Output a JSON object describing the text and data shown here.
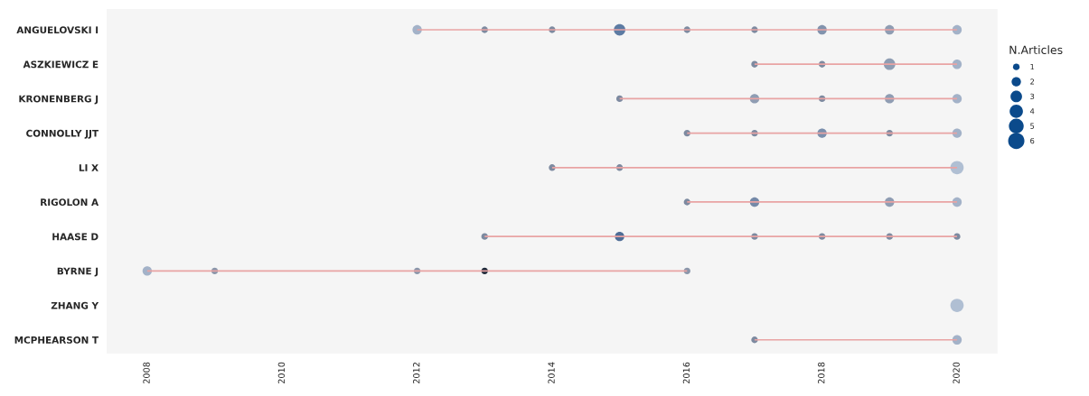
{
  "chart_data": {
    "type": "bubble",
    "orientation": "horizontal",
    "categories": [
      "ANGUELOVSKI I",
      "ASZKIEWICZ E",
      "KRONENBERG J",
      "CONNOLLY JJT",
      "LI X",
      "RIGOLON A",
      "HAASE D",
      "BYRNE J",
      "ZHANG Y",
      "MCPHEARSON T"
    ],
    "series": [
      {
        "type": "bar",
        "color": "#e8a3a3",
        "base": [
          2012,
          2017,
          2015,
          2016,
          2014,
          2016,
          2013,
          2008,
          null,
          2017
        ],
        "values": [
          8,
          3,
          5,
          4,
          6,
          4,
          7,
          8,
          null,
          3
        ]
      },
      {
        "type": "bubble",
        "color": "#0b4a8b",
        "values": [
          null,
          null,
          null,
          null,
          null,
          null,
          null,
          2008,
          null,
          null
        ],
        "sizes": [
          null,
          null,
          null,
          null,
          null,
          null,
          null,
          2,
          null,
          null
        ],
        "colors": [
          null,
          null,
          null,
          null,
          null,
          null,
          null,
          "#a3b2c8",
          null,
          null
        ]
      },
      {
        "type": "bubble",
        "values": [
          null,
          null,
          null,
          null,
          null,
          null,
          null,
          2009,
          null,
          null
        ],
        "sizes": [
          null,
          null,
          null,
          null,
          null,
          null,
          null,
          1,
          null,
          null
        ],
        "colors": [
          null,
          null,
          null,
          null,
          null,
          null,
          null,
          "#8a96aa",
          null,
          null
        ]
      },
      {
        "type": "bubble",
        "values": [
          2012,
          null,
          null,
          null,
          null,
          null,
          null,
          2012,
          null,
          null
        ],
        "sizes": [
          2,
          null,
          null,
          null,
          null,
          null,
          null,
          1,
          null,
          null
        ],
        "colors": [
          "#a3b2c8",
          null,
          null,
          null,
          null,
          null,
          null,
          "#8a96aa",
          null,
          null
        ]
      },
      {
        "type": "bubble",
        "values": [
          2013,
          null,
          null,
          null,
          null,
          null,
          2013,
          2013,
          null,
          null
        ],
        "sizes": [
          1,
          null,
          null,
          null,
          null,
          null,
          1,
          1,
          null,
          null
        ],
        "colors": [
          "#7d8aa0",
          null,
          null,
          null,
          null,
          null,
          "#7d8aa0",
          "#1f2a3a",
          null,
          null
        ]
      },
      {
        "type": "bubble",
        "values": [
          2014,
          null,
          null,
          null,
          2014,
          null,
          null,
          null,
          null,
          null
        ],
        "sizes": [
          1,
          null,
          null,
          null,
          1,
          null,
          null,
          null,
          null,
          null
        ],
        "colors": [
          "#7d8aa0",
          null,
          null,
          null,
          "#7d8aa0",
          null,
          null,
          null,
          null,
          null
        ]
      },
      {
        "type": "bubble",
        "values": [
          2015,
          null,
          2015,
          null,
          2015,
          null,
          2015,
          null,
          null,
          null
        ],
        "sizes": [
          3,
          null,
          1,
          null,
          1,
          null,
          2,
          null,
          null,
          null
        ],
        "colors": [
          "#5d7ba3",
          null,
          "#7d8aa0",
          null,
          "#7d8aa0",
          null,
          "#4f6d96",
          null,
          null,
          null
        ]
      },
      {
        "type": "bubble",
        "values": [
          2016,
          null,
          null,
          2016,
          null,
          2016,
          null,
          2016,
          null,
          null
        ],
        "sizes": [
          1,
          null,
          null,
          1,
          null,
          1,
          null,
          1,
          null,
          null
        ],
        "colors": [
          "#7d8aa0",
          null,
          null,
          "#7d8aa0",
          null,
          "#7d8aa0",
          null,
          "#8a96aa",
          null,
          null
        ]
      },
      {
        "type": "bubble",
        "values": [
          2017,
          2017,
          2017,
          2017,
          null,
          2017,
          2017,
          null,
          null,
          2017
        ],
        "sizes": [
          1,
          1,
          2,
          1,
          null,
          2,
          1,
          null,
          null,
          1
        ],
        "colors": [
          "#7d8aa0",
          "#7d8aa0",
          "#8f9db3",
          "#7d8aa0",
          null,
          "#7489a8",
          "#7d8aa0",
          null,
          null,
          "#7d8aa0"
        ]
      },
      {
        "type": "bubble",
        "values": [
          2018,
          2018,
          2018,
          2018,
          null,
          null,
          2018,
          null,
          null,
          null
        ],
        "sizes": [
          2,
          1,
          1,
          2,
          null,
          null,
          1,
          null,
          null,
          null
        ],
        "colors": [
          "#8293ad",
          "#7d8aa0",
          "#7d8aa0",
          "#7b8fad",
          null,
          null,
          "#7d8aa0",
          null,
          null,
          null
        ]
      },
      {
        "type": "bubble",
        "values": [
          2019,
          2019,
          2019,
          2019,
          null,
          2019,
          2019,
          null,
          null,
          null
        ],
        "sizes": [
          2,
          3,
          2,
          1,
          null,
          2,
          1,
          null,
          null,
          null
        ],
        "colors": [
          "#8f9db3",
          "#8f9db3",
          "#8f9db3",
          "#7d8aa0",
          null,
          "#8f9db3",
          "#7d8aa0",
          null,
          null,
          null
        ]
      },
      {
        "type": "bubble",
        "values": [
          2020,
          2020,
          2020,
          2020,
          2020,
          2020,
          2020,
          null,
          2020,
          2020
        ],
        "sizes": [
          2,
          2,
          2,
          2,
          4,
          2,
          1,
          null,
          4,
          2
        ],
        "colors": [
          "#a3b2c8",
          "#a3b2c8",
          "#a3b2c8",
          "#a3b2c8",
          "#b0bfd3",
          "#a3b2c8",
          "#7d8aa0",
          null,
          "#b0bfd3",
          "#a3b2c8"
        ]
      }
    ],
    "legend_title": "N.Articles",
    "size_legend": [
      1,
      2,
      3,
      4,
      5,
      6
    ],
    "xlim": [
      2007.4,
      2020.6
    ],
    "xticks": [
      2008,
      2010,
      2012,
      2014,
      2016,
      2018,
      2020
    ],
    "grid": false
  }
}
